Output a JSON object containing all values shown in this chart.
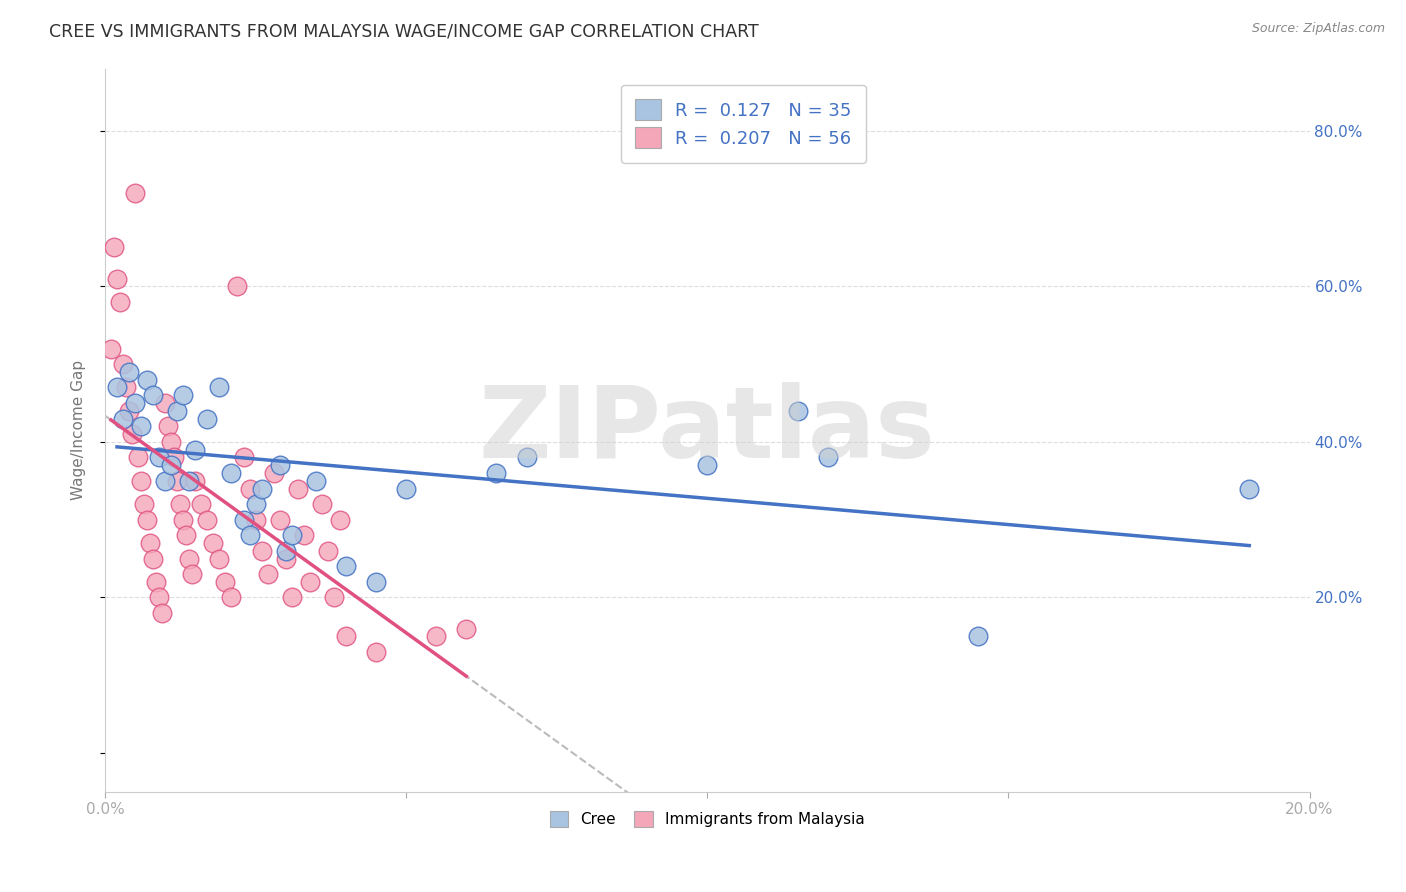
{
  "title": "CREE VS IMMIGRANTS FROM MALAYSIA WAGE/INCOME GAP CORRELATION CHART",
  "source": "Source: ZipAtlas.com",
  "ylabel": "Wage/Income Gap",
  "watermark": "ZIPatlas",
  "legend": {
    "cree": {
      "R": 0.127,
      "N": 35,
      "color": "#a8c4e0",
      "line_color": "#4472c4"
    },
    "malaysia": {
      "R": 0.207,
      "N": 56,
      "color": "#f4a7b9",
      "line_color": "#e05080"
    }
  },
  "cree_points": [
    [
      0.2,
      47.0
    ],
    [
      0.3,
      43.0
    ],
    [
      0.4,
      49.0
    ],
    [
      0.5,
      45.0
    ],
    [
      0.6,
      42.0
    ],
    [
      0.7,
      48.0
    ],
    [
      0.8,
      46.0
    ],
    [
      0.9,
      38.0
    ],
    [
      1.0,
      35.0
    ],
    [
      1.1,
      37.0
    ],
    [
      1.2,
      44.0
    ],
    [
      1.3,
      46.0
    ],
    [
      1.4,
      35.0
    ],
    [
      1.5,
      39.0
    ],
    [
      1.7,
      43.0
    ],
    [
      1.9,
      47.0
    ],
    [
      2.1,
      36.0
    ],
    [
      2.3,
      30.0
    ],
    [
      2.4,
      28.0
    ],
    [
      2.5,
      32.0
    ],
    [
      2.6,
      34.0
    ],
    [
      2.9,
      37.0
    ],
    [
      3.0,
      26.0
    ],
    [
      3.1,
      28.0
    ],
    [
      3.5,
      35.0
    ],
    [
      4.0,
      24.0
    ],
    [
      4.5,
      22.0
    ],
    [
      5.0,
      34.0
    ],
    [
      6.5,
      36.0
    ],
    [
      7.0,
      38.0
    ],
    [
      10.0,
      37.0
    ],
    [
      11.5,
      44.0
    ],
    [
      12.0,
      38.0
    ],
    [
      14.5,
      15.0
    ],
    [
      19.0,
      34.0
    ]
  ],
  "malaysia_points": [
    [
      0.1,
      52.0
    ],
    [
      0.15,
      65.0
    ],
    [
      0.2,
      61.0
    ],
    [
      0.25,
      58.0
    ],
    [
      0.3,
      50.0
    ],
    [
      0.35,
      47.0
    ],
    [
      0.4,
      44.0
    ],
    [
      0.45,
      41.0
    ],
    [
      0.5,
      72.0
    ],
    [
      0.55,
      38.0
    ],
    [
      0.6,
      35.0
    ],
    [
      0.65,
      32.0
    ],
    [
      0.7,
      30.0
    ],
    [
      0.75,
      27.0
    ],
    [
      0.8,
      25.0
    ],
    [
      0.85,
      22.0
    ],
    [
      0.9,
      20.0
    ],
    [
      0.95,
      18.0
    ],
    [
      1.0,
      45.0
    ],
    [
      1.05,
      42.0
    ],
    [
      1.1,
      40.0
    ],
    [
      1.15,
      38.0
    ],
    [
      1.2,
      35.0
    ],
    [
      1.25,
      32.0
    ],
    [
      1.3,
      30.0
    ],
    [
      1.35,
      28.0
    ],
    [
      1.4,
      25.0
    ],
    [
      1.45,
      23.0
    ],
    [
      1.5,
      35.0
    ],
    [
      1.6,
      32.0
    ],
    [
      1.7,
      30.0
    ],
    [
      1.8,
      27.0
    ],
    [
      1.9,
      25.0
    ],
    [
      2.0,
      22.0
    ],
    [
      2.1,
      20.0
    ],
    [
      2.2,
      60.0
    ],
    [
      2.3,
      38.0
    ],
    [
      2.4,
      34.0
    ],
    [
      2.5,
      30.0
    ],
    [
      2.6,
      26.0
    ],
    [
      2.7,
      23.0
    ],
    [
      2.8,
      36.0
    ],
    [
      2.9,
      30.0
    ],
    [
      3.0,
      25.0
    ],
    [
      3.1,
      20.0
    ],
    [
      3.2,
      34.0
    ],
    [
      3.3,
      28.0
    ],
    [
      3.4,
      22.0
    ],
    [
      3.6,
      32.0
    ],
    [
      3.7,
      26.0
    ],
    [
      3.8,
      20.0
    ],
    [
      3.9,
      30.0
    ],
    [
      4.0,
      15.0
    ],
    [
      4.5,
      13.0
    ],
    [
      5.5,
      15.0
    ],
    [
      6.0,
      16.0
    ]
  ],
  "xlim": [
    0.0,
    20.0
  ],
  "ylim": [
    -5.0,
    88.0
  ],
  "yticks": [
    20.0,
    40.0,
    60.0,
    80.0
  ],
  "ytick_labels": [
    "20.0%",
    "40.0%",
    "60.0%",
    "80.0%"
  ],
  "background_color": "#ffffff",
  "grid_color": "#dddddd",
  "title_color": "#333333",
  "axis_label_color": "#555555",
  "right_axis_color": "#4472c4",
  "dashed_line_color": "#bbbbbb"
}
